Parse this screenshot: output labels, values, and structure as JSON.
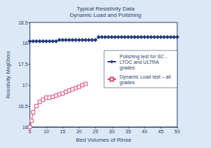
{
  "chart_data": {
    "type": "line",
    "title": "Typical Resistivity Data",
    "subtitle": "Dynamic Load and Polishing",
    "x_label": "Bed Volumes of Rinse",
    "y_label": "Resistivity, MegOhms",
    "xlim": [
      5,
      50
    ],
    "xticks": [
      5,
      10,
      15,
      20,
      25,
      30,
      35,
      40,
      45,
      50
    ],
    "ylim": [
      16,
      18.5
    ],
    "yticks": [
      16,
      16.5,
      17,
      17.5,
      18,
      18.5
    ],
    "grid": false,
    "legend": "right",
    "series": [
      {
        "name": "Polishing test for SC , LTOC and ULTRA grades",
        "color": "#1f3a7a",
        "marker": "diamond",
        "line_style": "solid",
        "x": [
          5,
          6,
          7,
          8,
          9,
          10,
          11,
          12,
          13,
          14,
          15,
          16,
          17,
          18,
          19,
          20,
          21,
          22,
          23,
          24,
          25,
          26,
          27,
          28,
          29,
          30,
          31,
          32,
          33,
          34,
          35,
          36,
          37,
          38,
          39,
          40,
          41,
          42,
          43,
          44,
          45,
          46,
          47,
          48,
          49,
          50
        ],
        "values": [
          18.05,
          18.05,
          18.05,
          18.05,
          18.05,
          18.05,
          18.05,
          18.05,
          18.05,
          18.08,
          18.08,
          18.08,
          18.08,
          18.08,
          18.08,
          18.08,
          18.08,
          18.08,
          18.08,
          18.08,
          18.08,
          18.15,
          18.15,
          18.15,
          18.15,
          18.15,
          18.15,
          18.15,
          18.15,
          18.15,
          18.15,
          18.15,
          18.15,
          18.15,
          18.15,
          18.15,
          18.15,
          18.15,
          18.15,
          18.15,
          18.15,
          18.15,
          18.15,
          18.15,
          18.15,
          18.15
        ]
      },
      {
        "name": "Dynamic Load test – all grades",
        "color": "#e0457b",
        "marker": "square",
        "line_style": "solid",
        "x": [
          5,
          5.5,
          6,
          7,
          8,
          9,
          10,
          11,
          12,
          13,
          14,
          15,
          16,
          17,
          18,
          19,
          20,
          21,
          22
        ],
        "values": [
          16.0,
          16.15,
          16.35,
          16.5,
          16.6,
          16.65,
          16.7,
          16.7,
          16.72,
          16.75,
          16.78,
          16.8,
          16.84,
          16.87,
          16.9,
          16.93,
          16.96,
          17.0,
          17.03
        ]
      }
    ]
  }
}
